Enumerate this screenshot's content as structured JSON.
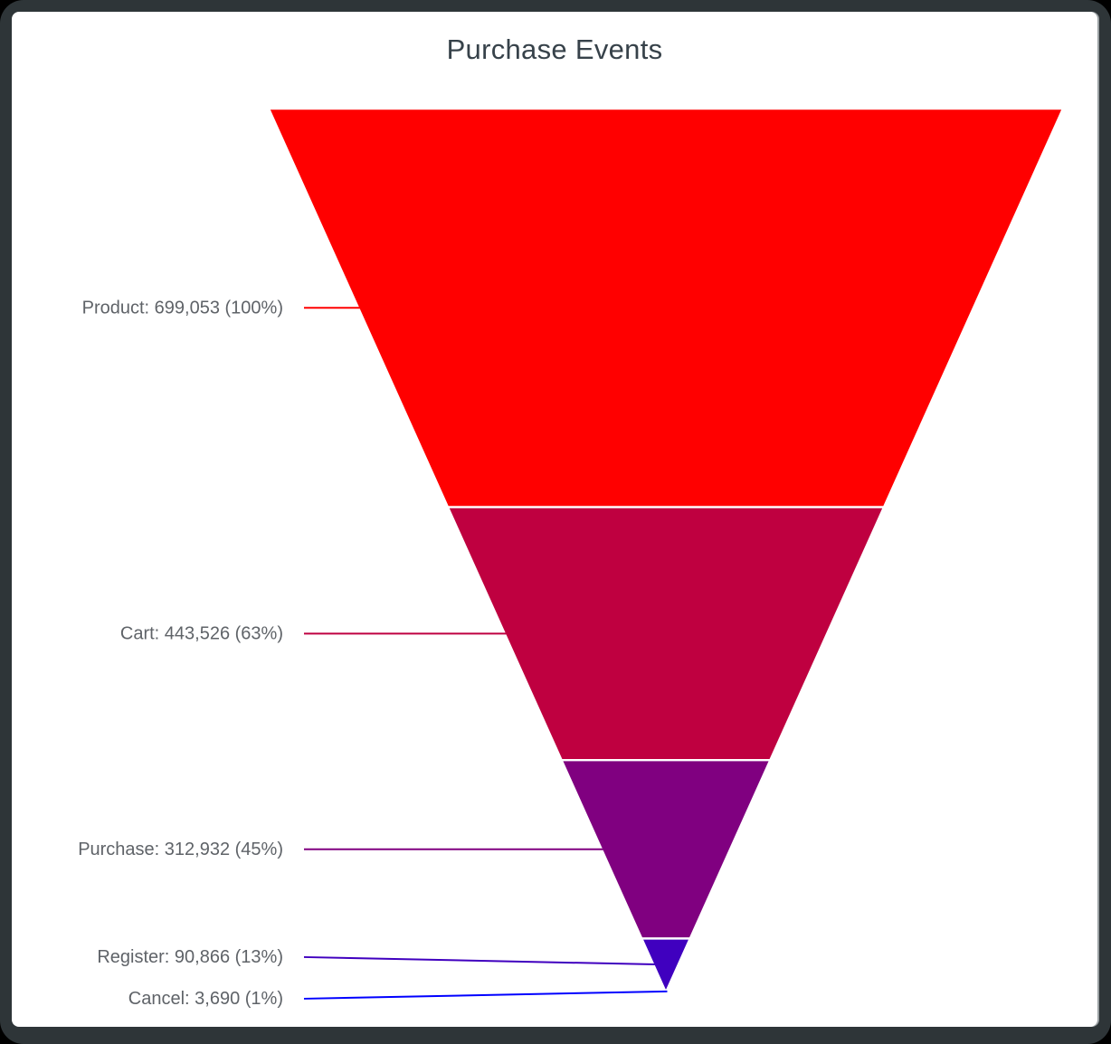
{
  "window": {
    "frame_color": "#2e3538",
    "card_background": "#ffffff"
  },
  "chart_data": {
    "type": "funnel",
    "variant": "inverted-pyramid",
    "title": "Purchase Events",
    "label_format": "{label}: {value} ({percent})",
    "labels_position": "left",
    "grid": false,
    "stages": [
      {
        "label": "Product",
        "value": 699053,
        "value_display": "699,053",
        "percent": "100%",
        "color": "#FF0000"
      },
      {
        "label": "Cart",
        "value": 443526,
        "value_display": "443,526",
        "percent": "63%",
        "color": "#BF0040"
      },
      {
        "label": "Purchase",
        "value": 312932,
        "value_display": "312,932",
        "percent": "45%",
        "color": "#800080"
      },
      {
        "label": "Register",
        "value": 90866,
        "value_display": "90,866",
        "percent": "13%",
        "color": "#4000BF"
      },
      {
        "label": "Cancel",
        "value": 3690,
        "value_display": "3,690",
        "percent": "1%",
        "color": "#0000FF"
      }
    ],
    "colors": {
      "title_text": "#37424a",
      "label_text": "#5f6368",
      "segment_separator": "#ffffff"
    }
  }
}
